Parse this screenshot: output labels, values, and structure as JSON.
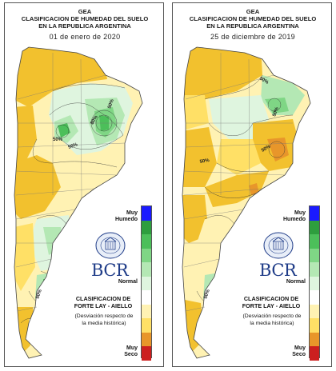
{
  "panels": [
    {
      "header": {
        "org": "GEA",
        "title_line1": "CLASIFICACION DE HUMEDAD DEL SUELO",
        "title_line2": "EN LA REPUBLICA ARGENTINA",
        "date": "01 de enero de 2020"
      },
      "contour_labels": [
        "50%",
        "80%",
        "50%",
        "50%",
        "50%"
      ],
      "dominant_zones": [
        "dry-north",
        "humid-center-west",
        "humid-east",
        "humid-patagonia"
      ]
    },
    {
      "header": {
        "org": "GEA",
        "title_line1": "CLASIFICACION DE HUMEDAD DEL SUELO",
        "title_line2": "EN LA REPUBLICA ARGENTINA",
        "date": "25 de diciembre de 2019"
      },
      "contour_labels": [
        "50%",
        "50%",
        "50%",
        "50%",
        "50%"
      ],
      "dominant_zones": [
        "dry-north",
        "dry-center-east",
        "humid-mesopotamia",
        "humid-patagonia"
      ]
    }
  ],
  "legend": {
    "top_label_1": "Muy",
    "top_label_2": "Humedo",
    "middle_label": "Normal",
    "bottom_label_1": "Muy",
    "bottom_label_2": "Seco",
    "colors": [
      "#1a1aff",
      "#2e9e3e",
      "#4cbf5a",
      "#7fd685",
      "#b4e8b4",
      "#dff5df",
      "#ffffff",
      "#fff2b3",
      "#ffe066",
      "#f2c12e",
      "#e8962a",
      "#d85f10",
      "#cc1f1f"
    ]
  },
  "logo": {
    "text": "BCR",
    "seal_text": "BOLSA DE COMERCIO DE ROSARIO"
  },
  "classification": {
    "line1": "CLASIFICACION DE",
    "line2": "FORTE LAY - AIELLO",
    "note_line1": "(Desviación respecto de",
    "note_line2": "la media histórica)"
  }
}
